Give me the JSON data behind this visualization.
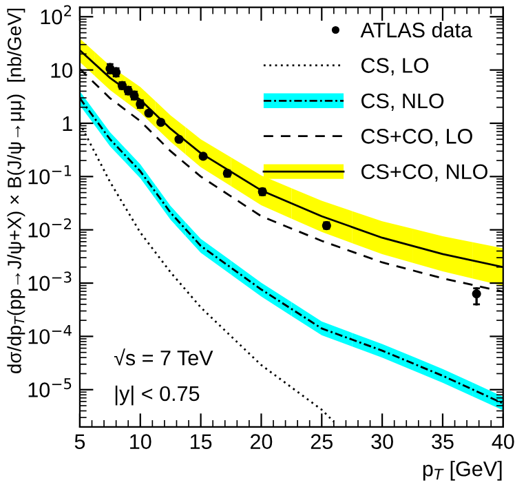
{
  "chart_data": {
    "type": "line",
    "xlabel": "p$_{T}$ [GeV]",
    "ylabel": "dσ/dp$_{T}$(pp→J/ψ+X) × B(J/ψ→μμ)  [nb/GeV]",
    "log": "y",
    "xlim": [
      5,
      40
    ],
    "xticks": [
      5,
      10,
      15,
      20,
      25,
      30,
      35,
      40
    ],
    "ylim": [
      2e-06,
      150
    ],
    "yticks": [
      {
        "value": 1e-05,
        "label": "10$^{−5}$"
      },
      {
        "value": 0.0001,
        "label": "10$^{−4}$"
      },
      {
        "value": 0.001,
        "label": "10$^{−3}$"
      },
      {
        "value": 0.01,
        "label": "10$^{−2}$"
      },
      {
        "value": 0.1,
        "label": "10$^{−1}$"
      },
      1,
      10,
      {
        "value": 100,
        "label": "10$^{2}$"
      }
    ],
    "grid": false,
    "legend": "top right",
    "annotations": [
      "√s = 7 TeV",
      "|y| < 0.75"
    ],
    "series": [
      {
        "name": "ATLAS data",
        "type": "scatter",
        "marker": "circle",
        "color": "#000000",
        "x": [
          7.5,
          8.0,
          8.5,
          9.0,
          9.5,
          10.0,
          10.7,
          11.7,
          13.2,
          15.2,
          17.2,
          20.1,
          25.4,
          37.8
        ],
        "values": [
          10.6,
          9.1,
          5.1,
          4.1,
          3.3,
          2.3,
          1.55,
          1.04,
          0.5,
          0.24,
          0.115,
          0.052,
          0.012,
          0.00063
        ],
        "errors": [
          [
            8.7,
            12.9
          ],
          [
            7.6,
            10.8
          ],
          [
            4.4,
            5.9
          ],
          [
            3.5,
            4.8
          ],
          [
            2.8,
            3.9
          ],
          [
            1.95,
            2.7
          ],
          [
            1.4,
            1.7
          ],
          [
            0.95,
            1.14
          ],
          [
            0.46,
            0.54
          ],
          [
            0.22,
            0.26
          ],
          [
            0.1,
            0.13
          ],
          [
            0.045,
            0.059
          ],
          [
            0.0105,
            0.0138
          ],
          [
            0.0004,
            0.0008
          ]
        ]
      },
      {
        "name": "CS, LO",
        "type": "line",
        "line_style": "dotted",
        "color": "#000000",
        "x": [
          5,
          7.5,
          10,
          12.5,
          15,
          20,
          25,
          26
        ],
        "values": [
          1.0,
          0.079,
          0.0089,
          0.0016,
          0.00035,
          2.9e-05,
          4.2e-06,
          2.5e-06
        ]
      },
      {
        "name": "CS, NLO",
        "type": "line",
        "line_style": "dashdot",
        "color": "#000000",
        "colors": [
          "#00ffff",
          "#00ffff",
          "#00ffff",
          "#00ffff",
          "#00ffff",
          "#00ffff",
          "#00ffff",
          "#00ffff",
          "#00ffff",
          "#00ffff"
        ],
        "x": [
          5,
          7.5,
          10,
          12.5,
          15,
          20,
          25,
          30,
          35,
          40
        ],
        "values": [
          2.95,
          0.5,
          0.126,
          0.021,
          0.005,
          0.00076,
          0.000141,
          5.4e-05,
          1.82e-05,
          5.5e-06
        ],
        "lower": [
          2.19,
          0.37,
          0.093,
          0.0155,
          0.0037,
          0.00056,
          0.000105,
          4e-05,
          1.35e-05,
          4.1e-06
        ],
        "upper": [
          3.98,
          0.68,
          0.17,
          0.028,
          0.0068,
          0.00102,
          0.00019,
          7.2e-05,
          2.45e-05,
          7.4e-06
        ]
      },
      {
        "name": "CS+CO, LO",
        "type": "line",
        "line_style": "dashed",
        "color": "#000000",
        "x": [
          5,
          7.5,
          10,
          12.5,
          15,
          20,
          25,
          30,
          35,
          40
        ],
        "values": [
          10.5,
          2.95,
          1.1,
          0.3,
          0.1,
          0.018,
          0.0062,
          0.00245,
          0.00123,
          0.00069
        ]
      },
      {
        "name": "CS+CO, NLO",
        "type": "line",
        "line_style": "solid",
        "color": "#000000",
        "colors": [
          "#ffff00",
          "#ffff00",
          "#ffff00",
          "#ffff00",
          "#ffff00",
          "#ffff00",
          "#ffff00",
          "#ffff00",
          "#ffff00",
          "#ffff00"
        ],
        "x": [
          5,
          7.5,
          10,
          12.5,
          15,
          20,
          25,
          30,
          35,
          40
        ],
        "values": [
          23.4,
          7.1,
          2.75,
          0.79,
          0.275,
          0.055,
          0.018,
          0.0071,
          0.0035,
          0.002
        ],
        "lower": [
          14.1,
          4.2,
          1.58,
          0.45,
          0.15,
          0.029,
          0.0091,
          0.0035,
          0.00166,
          0.00089
        ],
        "upper": [
          38.9,
          12,
          4.8,
          1.41,
          0.5,
          0.105,
          0.035,
          0.0145,
          0.0076,
          0.0045
        ]
      }
    ]
  }
}
